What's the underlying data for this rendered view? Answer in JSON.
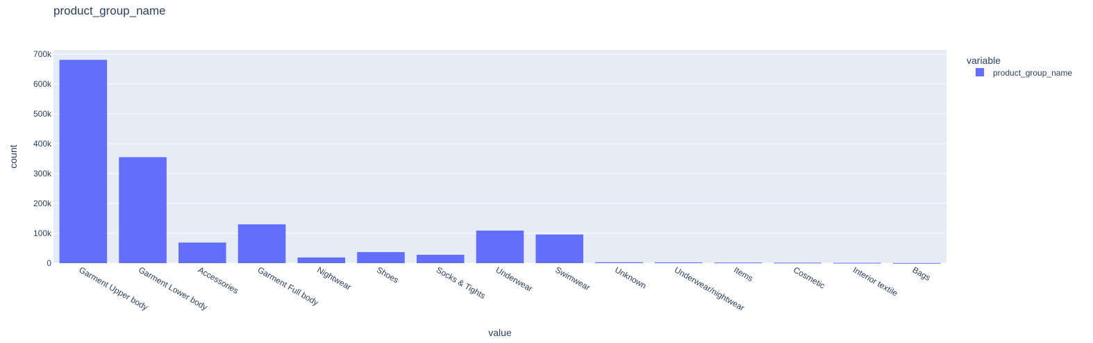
{
  "chart_data": {
    "type": "bar",
    "title": "product_group_name",
    "xlabel": "value",
    "ylabel": "count",
    "ylim": [
      0,
      714000
    ],
    "yticks": [
      0,
      100000,
      200000,
      300000,
      400000,
      500000,
      600000,
      700000
    ],
    "ytick_labels": [
      "0",
      "100k",
      "200k",
      "300k",
      "400k",
      "500k",
      "600k",
      "700k"
    ],
    "categories": [
      "Garment Upper body",
      "Garment Lower body",
      "Accessories",
      "Garment Full body",
      "Nightwear",
      "Shoes",
      "Socks & Tights",
      "Underwear",
      "Swimwear",
      "Unknown",
      "Underwear/nightwear",
      "Items",
      "Cosmetic",
      "Interior textile",
      "Bags"
    ],
    "series": [
      {
        "name": "product_group_name",
        "color": "#636efa",
        "values": [
          681000,
          355000,
          69000,
          130000,
          19000,
          37000,
          28000,
          109000,
          96000,
          3000,
          2500,
          2000,
          1500,
          1000,
          500
        ]
      }
    ],
    "grid": true,
    "legend": {
      "title": "variable",
      "position": "top-right"
    },
    "plot_bg": "#e5ecf6"
  }
}
